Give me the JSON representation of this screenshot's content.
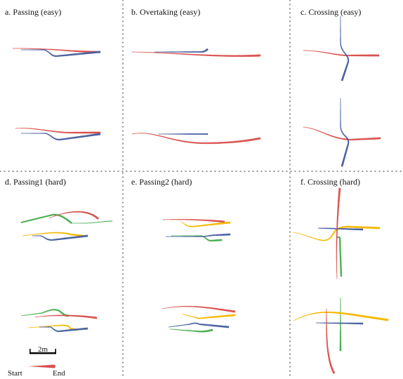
{
  "panels": [
    {
      "id": "a",
      "title": "a. Passing (easy)"
    },
    {
      "id": "b",
      "title": "b. Overtaking (easy)"
    },
    {
      "id": "c",
      "title": "c. Crossing (easy)"
    },
    {
      "id": "d",
      "title": "d. Passing1 (hard)"
    },
    {
      "id": "e",
      "title": "e. Passing2 (hard)"
    },
    {
      "id": "f",
      "title": "f. Crossing (hard)"
    }
  ],
  "legend": {
    "scale_label": "2m",
    "start_label": "Start",
    "end_label": "End"
  },
  "colors": {
    "red": "#d9534f",
    "blue": "#4a62a0",
    "green": "#4caf50",
    "yellow": "#f5b800",
    "divider": "#555555",
    "scale_bar": "#000000"
  }
}
